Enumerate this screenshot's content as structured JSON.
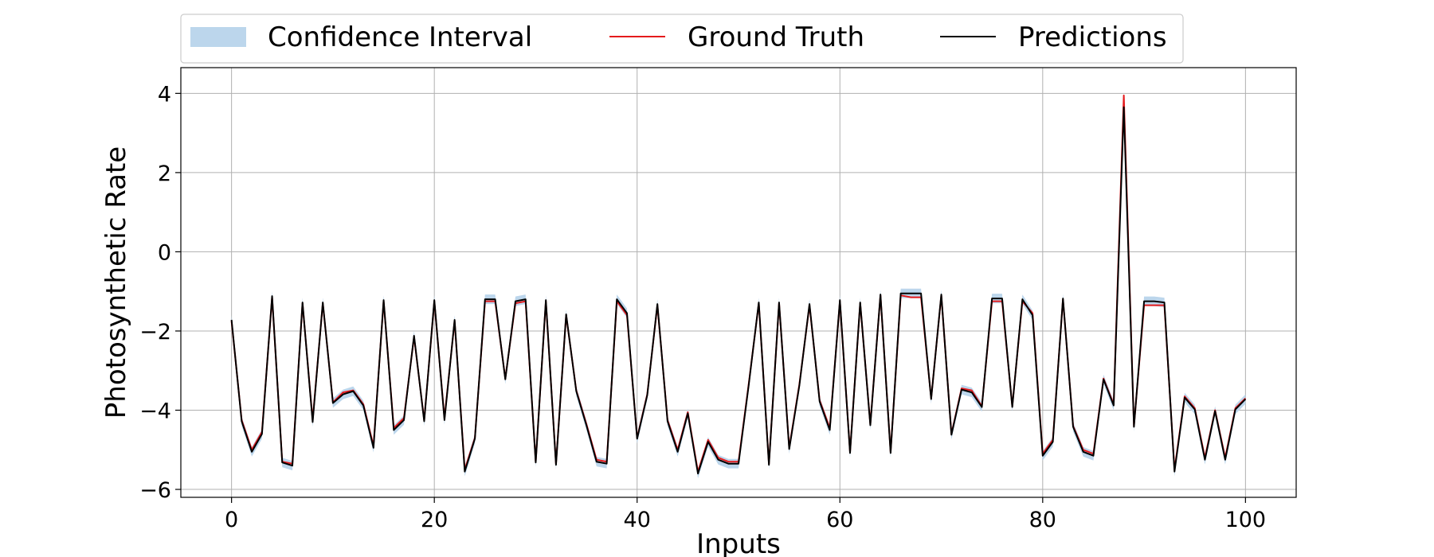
{
  "chart_data": {
    "type": "line",
    "title": "",
    "xlabel": "Inputs",
    "ylabel": "Photosynthetic Rate",
    "xlim": [
      -5,
      105
    ],
    "ylim": [
      -6.2,
      4.65
    ],
    "xticks": [
      0,
      20,
      40,
      60,
      80,
      100
    ],
    "yticks": [
      -6,
      -4,
      -2,
      0,
      2,
      4
    ],
    "grid": true,
    "legend": {
      "placement": "top-center, above plot",
      "entries": [
        "Confidence Interval",
        "Ground Truth",
        "Predictions"
      ]
    },
    "colors": {
      "confidence_interval": "#bcd6ec",
      "ground_truth": "#e41a1c",
      "predictions": "#000000",
      "grid": "#b0b0b0"
    },
    "x": [
      0,
      1,
      2,
      3,
      4,
      5,
      6,
      7,
      8,
      9,
      10,
      11,
      12,
      13,
      14,
      15,
      16,
      17,
      18,
      19,
      20,
      21,
      22,
      23,
      24,
      25,
      26,
      27,
      28,
      29,
      30,
      31,
      32,
      33,
      34,
      35,
      36,
      37,
      38,
      39,
      40,
      41,
      42,
      43,
      44,
      45,
      46,
      47,
      48,
      49,
      50,
      51,
      52,
      53,
      54,
      55,
      56,
      57,
      58,
      59,
      60,
      61,
      62,
      63,
      64,
      65,
      66,
      67,
      68,
      69,
      70,
      71,
      72,
      73,
      74,
      75,
      76,
      77,
      78,
      79,
      80,
      81,
      82,
      83,
      84,
      85,
      86,
      87,
      88,
      89,
      90,
      91,
      92,
      93,
      94,
      95,
      96,
      97,
      98,
      99,
      100
    ],
    "series": [
      {
        "name": "Ground Truth",
        "values": [
          -1.75,
          -4.25,
          -5.0,
          -4.55,
          -1.15,
          -5.3,
          -5.35,
          -1.3,
          -4.25,
          -1.3,
          -3.8,
          -3.55,
          -3.5,
          -3.85,
          -4.9,
          -1.25,
          -4.45,
          -4.2,
          -2.15,
          -4.25,
          -1.25,
          -4.2,
          -1.75,
          -5.5,
          -4.7,
          -1.25,
          -1.25,
          -3.2,
          -1.3,
          -1.25,
          -5.3,
          -1.25,
          -5.35,
          -1.6,
          -3.5,
          -4.35,
          -5.25,
          -5.3,
          -1.25,
          -1.6,
          -4.7,
          -3.6,
          -1.35,
          -4.25,
          -5.0,
          -4.05,
          -5.55,
          -4.75,
          -5.2,
          -5.3,
          -5.3,
          -3.35,
          -1.3,
          -5.35,
          -1.3,
          -4.95,
          -3.35,
          -1.35,
          -3.75,
          -4.45,
          -1.25,
          -5.05,
          -1.3,
          -4.35,
          -1.1,
          -5.05,
          -1.1,
          -1.15,
          -1.15,
          -3.7,
          -1.1,
          -4.6,
          -3.45,
          -3.5,
          -3.9,
          -1.25,
          -1.25,
          -3.9,
          -1.25,
          -1.55,
          -5.1,
          -4.75,
          -1.2,
          -4.4,
          -5.0,
          -5.1,
          -3.2,
          -3.85,
          3.95,
          -4.4,
          -1.35,
          -1.35,
          -1.35,
          -5.5,
          -3.65,
          -3.95,
          -5.2,
          -4.0,
          -5.2,
          -3.95,
          -3.7
        ]
      },
      {
        "name": "Predictions",
        "values": [
          -1.72,
          -4.28,
          -5.05,
          -4.6,
          -1.12,
          -5.32,
          -5.4,
          -1.28,
          -4.3,
          -1.28,
          -3.82,
          -3.6,
          -3.52,
          -3.88,
          -4.95,
          -1.22,
          -4.5,
          -4.25,
          -2.12,
          -4.28,
          -1.22,
          -4.25,
          -1.72,
          -5.55,
          -4.72,
          -1.2,
          -1.2,
          -3.22,
          -1.25,
          -1.2,
          -5.32,
          -1.22,
          -5.38,
          -1.58,
          -3.52,
          -4.38,
          -5.3,
          -5.35,
          -1.2,
          -1.55,
          -4.72,
          -3.62,
          -1.32,
          -4.28,
          -5.05,
          -4.08,
          -5.6,
          -4.8,
          -5.25,
          -5.35,
          -5.35,
          -3.38,
          -1.28,
          -5.38,
          -1.28,
          -4.98,
          -3.38,
          -1.32,
          -3.78,
          -4.5,
          -1.22,
          -5.08,
          -1.28,
          -4.38,
          -1.08,
          -5.08,
          -1.05,
          -1.05,
          -1.05,
          -3.72,
          -1.08,
          -4.62,
          -3.48,
          -3.55,
          -3.92,
          -1.18,
          -1.18,
          -3.92,
          -1.2,
          -1.6,
          -5.15,
          -4.8,
          -1.18,
          -4.42,
          -5.05,
          -5.15,
          -3.22,
          -3.88,
          3.65,
          -4.42,
          -1.25,
          -1.25,
          -1.28,
          -5.55,
          -3.68,
          -3.98,
          -5.25,
          -4.02,
          -5.25,
          -3.98,
          -3.72
        ]
      },
      {
        "name": "Confidence Interval",
        "lower_offset": -0.12,
        "upper_offset": 0.12
      }
    ]
  }
}
